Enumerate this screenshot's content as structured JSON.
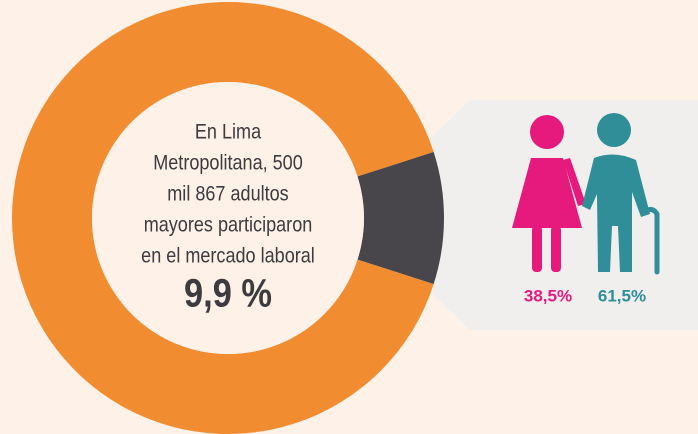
{
  "chart_data": [
    {
      "type": "donut",
      "text_lines": [
        "En Lima",
        "Metropolitana, 500",
        "mil 867 adultos",
        "mayores participaron",
        "en el mercado laboral"
      ],
      "values": [
        9.9,
        90.1
      ],
      "value_labels": [
        "9,9 %",
        null
      ],
      "colors": [
        "#48464a",
        "#f28c30"
      ]
    },
    {
      "type": "icon_share",
      "values": [
        38.5,
        61.5
      ],
      "value_labels": [
        "38,5%",
        "61,5%"
      ],
      "colors": [
        "#e6197c",
        "#2f8e98"
      ]
    }
  ]
}
